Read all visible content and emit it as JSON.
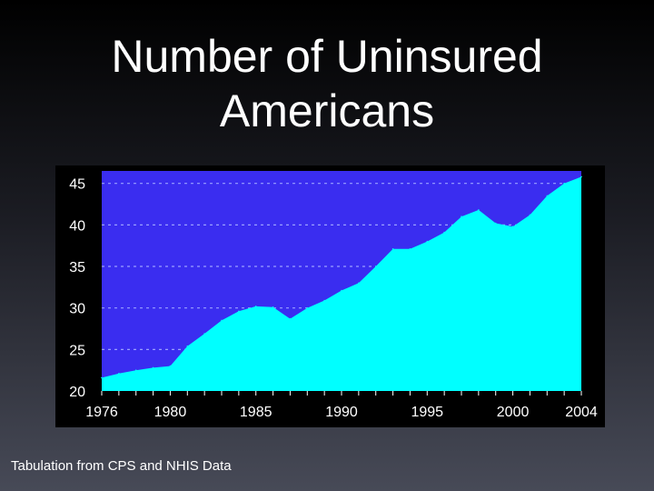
{
  "slide": {
    "title": "Number of Uninsured\nAmericans",
    "caption": "Tabulation from CPS and NHIS Data"
  },
  "colors": {
    "plot_background": "#3a2df0",
    "area_fill": "#00ffff",
    "frame": "#000000",
    "tick_text": "#ffffff",
    "grid": "#9aa0ff"
  },
  "chart_data": {
    "type": "area",
    "title": "",
    "xlabel": "",
    "ylabel": "",
    "xlim": [
      1976,
      2004
    ],
    "ylim": [
      20,
      46.5
    ],
    "x_ticks": [
      1976,
      1980,
      1985,
      1990,
      1995,
      2000,
      2004
    ],
    "y_ticks": [
      20,
      25,
      30,
      35,
      40,
      45
    ],
    "grid": "horizontal dashed",
    "series": [
      {
        "x": [
          1976,
          1977,
          1978,
          1979,
          1980,
          1981,
          1982,
          1983,
          1984,
          1985,
          1986,
          1987,
          1988,
          1989,
          1990,
          1991,
          1992,
          1993,
          1994,
          1995,
          1996,
          1997,
          1998,
          1999,
          2000,
          2001,
          2002,
          2003,
          2004
        ],
        "values": [
          21.6,
          22.1,
          22.5,
          22.8,
          23.0,
          25.4,
          26.9,
          28.5,
          29.6,
          30.2,
          30.1,
          28.7,
          30.0,
          30.9,
          32.1,
          33.0,
          35.0,
          37.1,
          37.1,
          38.0,
          39.1,
          41.0,
          41.8,
          40.2,
          39.8,
          41.2,
          43.5,
          45.0,
          45.8
        ]
      }
    ]
  }
}
